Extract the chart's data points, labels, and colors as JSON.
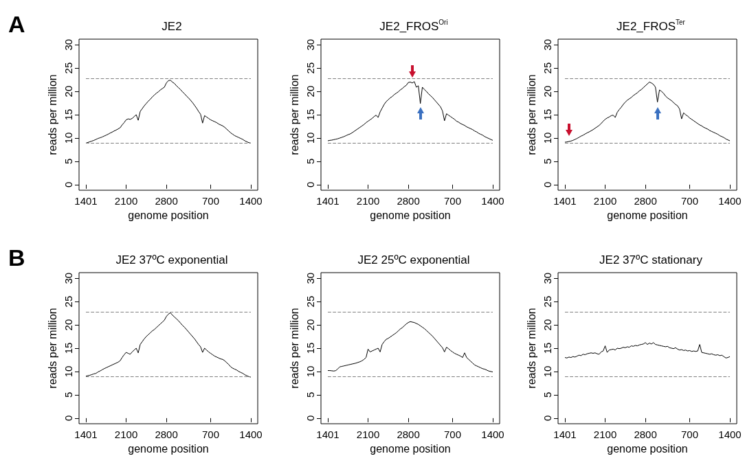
{
  "chart_data": [
    {
      "type": "line",
      "title": "JE2",
      "xlabel": "genome position",
      "ylabel": "reads per million",
      "annotations": [
        "A"
      ],
      "color": "#000000",
      "categories": [
        "1401",
        null,
        null,
        null,
        null,
        null,
        null,
        null,
        null,
        null,
        null,
        null,
        null,
        null,
        null,
        null,
        null,
        null,
        null,
        null,
        "2100",
        null,
        null,
        null,
        null,
        null,
        null,
        null,
        null,
        null,
        null,
        null,
        null,
        null,
        null,
        null,
        null,
        null,
        null,
        null,
        "2800",
        null,
        null,
        null,
        null,
        null,
        null,
        null,
        null,
        null,
        null,
        null,
        null,
        null,
        null,
        null,
        null,
        null,
        null,
        null,
        null,
        null,
        "700",
        null,
        null,
        null,
        null,
        null,
        null,
        null,
        null,
        null,
        null,
        null,
        null,
        null,
        null,
        null,
        null,
        null,
        null,
        null,
        "1400"
      ],
      "values": [
        8.9,
        9.05,
        9.2,
        9.35,
        9.5,
        9.7,
        9.9,
        10.05,
        10.2,
        10.4,
        10.6,
        10.8,
        11.05,
        11.25,
        11.5,
        11.7,
        11.95,
        12.2,
        12.8,
        13.3,
        13.9,
        14.1,
        14.0,
        14.2,
        14.6,
        15.0,
        13.8,
        15.7,
        16.3,
        16.9,
        17.4,
        17.9,
        18.3,
        18.8,
        19.2,
        19.6,
        19.9,
        20.3,
        20.6,
        20.9,
        21.8,
        22.3,
        22.4,
        22.0,
        21.7,
        21.2,
        20.8,
        20.4,
        19.9,
        19.5,
        19.0,
        18.6,
        18.1,
        17.6,
        17.0,
        16.4,
        15.7,
        15.1,
        13.2,
        14.8,
        14.5,
        14.2,
        13.9,
        13.7,
        13.5,
        13.3,
        13.0,
        12.8,
        12.6,
        12.3,
        11.9,
        11.5,
        11.1,
        10.8,
        10.5,
        10.3,
        10.1,
        9.9,
        9.7,
        9.4,
        9.2,
        9.0,
        8.9
      ],
      "ylim": [
        -1.2,
        31.2
      ],
      "yticks": [
        0,
        5,
        10,
        15,
        20,
        25,
        30
      ],
      "ref_lines": [
        {
          "axis": "y",
          "value": 22.7,
          "color": "#808080",
          "line_style": "dashed"
        },
        {
          "axis": "y",
          "value": 8.9,
          "color": "#808080",
          "line_style": "dashed"
        }
      ]
    },
    {
      "type": "line",
      "title": "JE2_FROS$^{Ori}$",
      "xlabel": "genome position",
      "ylabel": "reads per million",
      "color": "#000000",
      "categories": [
        "1401",
        null,
        null,
        null,
        null,
        null,
        null,
        null,
        null,
        null,
        null,
        null,
        null,
        null,
        null,
        null,
        null,
        null,
        null,
        null,
        "2100",
        null,
        null,
        null,
        null,
        null,
        null,
        null,
        null,
        null,
        null,
        null,
        null,
        null,
        null,
        null,
        null,
        null,
        null,
        null,
        "2800",
        null,
        null,
        null,
        null,
        null,
        null,
        null,
        null,
        null,
        null,
        null,
        null,
        null,
        null,
        null,
        null,
        null,
        null,
        null,
        null,
        null,
        "700",
        null,
        null,
        null,
        null,
        null,
        null,
        null,
        null,
        null,
        null,
        null,
        null,
        null,
        null,
        null,
        null,
        null,
        null,
        null,
        "1400"
      ],
      "values": [
        9.4,
        9.5,
        9.55,
        9.65,
        9.75,
        9.85,
        10.0,
        10.15,
        10.3,
        10.5,
        10.7,
        10.85,
        11.1,
        11.4,
        11.7,
        12.0,
        12.3,
        12.6,
        12.9,
        13.3,
        13.6,
        13.9,
        14.2,
        14.6,
        14.9,
        14.4,
        15.6,
        16.4,
        17.2,
        17.8,
        18.2,
        18.6,
        18.9,
        19.3,
        19.6,
        19.9,
        20.3,
        20.6,
        21.0,
        21.3,
        21.9,
        22.0,
        21.8,
        22.1,
        20.9,
        21.2,
        17.4,
        20.9,
        20.4,
        20.0,
        19.5,
        19.1,
        18.7,
        18.2,
        17.7,
        17.2,
        16.7,
        15.8,
        13.7,
        15.2,
        14.9,
        14.6,
        14.3,
        14.0,
        13.6,
        13.4,
        13.1,
        12.9,
        12.7,
        12.4,
        12.2,
        12.0,
        11.8,
        11.5,
        11.3,
        11.0,
        10.8,
        10.6,
        10.3,
        10.1,
        9.9,
        9.7,
        9.5
      ],
      "ylim": [
        -1.2,
        31.2
      ],
      "yticks": [
        0,
        5,
        10,
        15,
        20,
        25,
        30
      ],
      "ref_lines": [
        {
          "axis": "y",
          "value": 22.7,
          "color": "#808080",
          "line_style": "dashed"
        },
        {
          "axis": "y",
          "value": 8.9,
          "color": "#808080",
          "line_style": "dashed"
        }
      ]
    },
    {
      "type": "line",
      "title": "JE2_FROS$^{Ter}$",
      "xlabel": "genome position",
      "ylabel": "reads per million",
      "color": "#000000",
      "categories": [
        "1401",
        null,
        null,
        null,
        null,
        null,
        null,
        null,
        null,
        null,
        null,
        null,
        null,
        null,
        null,
        null,
        null,
        null,
        null,
        null,
        "2100",
        null,
        null,
        null,
        null,
        null,
        null,
        null,
        null,
        null,
        null,
        null,
        null,
        null,
        null,
        null,
        null,
        null,
        null,
        null,
        "2800",
        null,
        null,
        null,
        null,
        null,
        null,
        null,
        null,
        null,
        null,
        null,
        null,
        null,
        null,
        null,
        null,
        null,
        null,
        null,
        null,
        null,
        "700",
        null,
        null,
        null,
        null,
        null,
        null,
        null,
        null,
        null,
        null,
        null,
        null,
        null,
        null,
        null,
        null,
        null,
        null,
        null,
        "1400"
      ],
      "values": [
        9.1,
        9.15,
        9.25,
        9.35,
        9.5,
        9.7,
        9.9,
        10.15,
        10.4,
        10.6,
        10.85,
        11.1,
        11.3,
        11.55,
        11.8,
        12.1,
        12.4,
        12.7,
        13.1,
        13.6,
        14.0,
        14.3,
        14.5,
        14.8,
        14.9,
        14.4,
        15.5,
        16.1,
        16.6,
        17.2,
        17.7,
        18.1,
        18.4,
        18.7,
        19.1,
        19.4,
        19.7,
        20.1,
        20.4,
        20.8,
        21.2,
        21.6,
        22.0,
        21.8,
        21.5,
        20.9,
        17.7,
        20.3,
        20.0,
        19.6,
        19.0,
        18.6,
        18.3,
        18.0,
        17.6,
        17.2,
        16.9,
        16.2,
        14.1,
        15.4,
        15.0,
        14.7,
        14.3,
        14.0,
        13.7,
        13.4,
        13.1,
        12.8,
        12.6,
        12.3,
        12.1,
        11.9,
        11.6,
        11.4,
        11.2,
        11.0,
        10.8,
        10.5,
        10.3,
        10.1,
        9.8,
        9.6,
        9.4
      ],
      "ylim": [
        -1.2,
        31.2
      ],
      "yticks": [
        0,
        5,
        10,
        15,
        20,
        25,
        30
      ],
      "ref_lines": [
        {
          "axis": "y",
          "value": 22.7,
          "color": "#808080",
          "line_style": "dashed"
        },
        {
          "axis": "y",
          "value": 8.9,
          "color": "#808080",
          "line_style": "dashed"
        }
      ]
    },
    {
      "type": "line",
      "title": "JE2 37ºC exponential",
      "xlabel": "genome position",
      "ylabel": "reads per million",
      "annotations": [
        "B"
      ],
      "color": "#000000",
      "categories": [
        "1401",
        null,
        null,
        null,
        null,
        null,
        null,
        null,
        null,
        null,
        null,
        null,
        null,
        null,
        null,
        null,
        null,
        null,
        null,
        null,
        "2100",
        null,
        null,
        null,
        null,
        null,
        null,
        null,
        null,
        null,
        null,
        null,
        null,
        null,
        null,
        null,
        null,
        null,
        null,
        null,
        "2800",
        null,
        null,
        null,
        null,
        null,
        null,
        null,
        null,
        null,
        null,
        null,
        null,
        null,
        null,
        null,
        null,
        null,
        null,
        null,
        null,
        null,
        "700",
        null,
        null,
        null,
        null,
        null,
        null,
        null,
        null,
        null,
        null,
        null,
        null,
        null,
        null,
        null,
        null,
        null,
        null,
        null,
        "1400"
      ],
      "values": [
        9.0,
        9.1,
        9.2,
        9.35,
        9.5,
        9.6,
        9.9,
        10.1,
        10.35,
        10.6,
        10.8,
        11.0,
        11.2,
        11.4,
        11.6,
        11.8,
        12.0,
        12.3,
        13.0,
        13.6,
        14.1,
        13.9,
        13.7,
        14.2,
        14.6,
        15.0,
        14.0,
        15.8,
        16.4,
        17.0,
        17.5,
        17.9,
        18.3,
        18.7,
        19.0,
        19.4,
        19.8,
        20.2,
        20.6,
        21.0,
        21.8,
        22.3,
        22.6,
        22.1,
        21.7,
        21.3,
        20.9,
        20.4,
        19.9,
        19.5,
        19.0,
        18.5,
        18.0,
        17.5,
        17.0,
        16.4,
        15.8,
        15.3,
        14.1,
        15.0,
        14.6,
        14.2,
        13.9,
        13.6,
        13.3,
        13.1,
        12.9,
        12.7,
        12.6,
        12.3,
        11.9,
        11.5,
        11.0,
        10.7,
        10.5,
        10.3,
        10.0,
        9.8,
        9.6,
        9.3,
        9.1,
        8.9,
        8.8
      ],
      "ylim": [
        -1.2,
        31.2
      ],
      "yticks": [
        0,
        5,
        10,
        15,
        20,
        25,
        30
      ],
      "ref_lines": [
        {
          "axis": "y",
          "value": 22.7,
          "color": "#808080",
          "line_style": "dashed"
        },
        {
          "axis": "y",
          "value": 8.9,
          "color": "#808080",
          "line_style": "dashed"
        }
      ]
    },
    {
      "type": "line",
      "title": "JE2 25ºC exponential",
      "xlabel": "genome position",
      "ylabel": "reads per million",
      "color": "#000000",
      "categories": [
        "1401",
        null,
        null,
        null,
        null,
        null,
        null,
        null,
        null,
        null,
        null,
        null,
        null,
        null,
        null,
        null,
        null,
        null,
        null,
        null,
        "2100",
        null,
        null,
        null,
        null,
        null,
        null,
        null,
        null,
        null,
        null,
        null,
        null,
        null,
        null,
        null,
        null,
        null,
        null,
        null,
        "2800",
        null,
        null,
        null,
        null,
        null,
        null,
        null,
        null,
        null,
        null,
        null,
        null,
        null,
        null,
        null,
        null,
        null,
        null,
        null,
        null,
        null,
        "700",
        null,
        null,
        null,
        null,
        null,
        null,
        null,
        null,
        null,
        null,
        null,
        null,
        null,
        null,
        null,
        null,
        null,
        null,
        null,
        "1400"
      ],
      "values": [
        10.2,
        10.2,
        10.15,
        10.1,
        10.2,
        10.6,
        11.0,
        11.1,
        11.2,
        11.3,
        11.4,
        11.5,
        11.6,
        11.7,
        11.8,
        11.95,
        12.1,
        12.3,
        12.6,
        13.0,
        14.8,
        14.2,
        14.4,
        14.6,
        14.8,
        15.0,
        14.2,
        15.8,
        16.4,
        16.9,
        17.1,
        17.4,
        17.7,
        18.0,
        18.3,
        18.7,
        19.1,
        19.4,
        19.8,
        20.2,
        20.5,
        20.7,
        20.6,
        20.5,
        20.3,
        20.1,
        19.8,
        19.5,
        19.2,
        18.8,
        18.4,
        18.0,
        17.6,
        17.1,
        16.6,
        16.1,
        15.6,
        15.1,
        14.2,
        15.2,
        14.9,
        14.5,
        14.2,
        13.9,
        13.7,
        13.5,
        13.3,
        13.0,
        14.0,
        13.0,
        12.6,
        12.2,
        11.8,
        11.4,
        11.2,
        11.0,
        10.8,
        10.6,
        10.5,
        10.3,
        10.1,
        10.0,
        9.9
      ],
      "ylim": [
        -1.2,
        31.2
      ],
      "yticks": [
        0,
        5,
        10,
        15,
        20,
        25,
        30
      ],
      "ref_lines": [
        {
          "axis": "y",
          "value": 22.7,
          "color": "#808080",
          "line_style": "dashed"
        },
        {
          "axis": "y",
          "value": 8.9,
          "color": "#808080",
          "line_style": "dashed"
        }
      ]
    },
    {
      "type": "line",
      "title": "JE2 37ºC stationary",
      "xlabel": "genome position",
      "ylabel": "reads per million",
      "color": "#000000",
      "categories": [
        "1401",
        null,
        null,
        null,
        null,
        null,
        null,
        null,
        null,
        null,
        null,
        null,
        null,
        null,
        null,
        null,
        null,
        null,
        null,
        null,
        "2100",
        null,
        null,
        null,
        null,
        null,
        null,
        null,
        null,
        null,
        null,
        null,
        null,
        null,
        null,
        null,
        null,
        null,
        null,
        null,
        "2800",
        null,
        null,
        null,
        null,
        null,
        null,
        null,
        null,
        null,
        null,
        null,
        null,
        null,
        null,
        null,
        null,
        null,
        null,
        null,
        null,
        null,
        "700",
        null,
        null,
        null,
        null,
        null,
        null,
        null,
        null,
        null,
        null,
        null,
        null,
        null,
        null,
        null,
        null,
        null,
        null,
        null,
        "1400"
      ],
      "values": [
        13.0,
        12.9,
        13.1,
        13.0,
        13.2,
        13.1,
        13.3,
        13.5,
        13.4,
        13.7,
        13.6,
        13.8,
        13.9,
        14.0,
        13.9,
        14.0,
        13.8,
        13.7,
        14.2,
        14.4,
        15.5,
        14.1,
        14.6,
        14.7,
        14.8,
        14.6,
        15.0,
        14.9,
        15.0,
        15.2,
        15.1,
        15.3,
        15.2,
        15.5,
        15.4,
        15.6,
        15.5,
        15.7,
        15.8,
        15.9,
        16.2,
        15.8,
        16.1,
        15.9,
        16.2,
        15.8,
        15.7,
        15.6,
        15.5,
        15.4,
        15.3,
        15.4,
        15.1,
        15.0,
        14.9,
        15.1,
        14.8,
        14.6,
        14.7,
        14.5,
        14.6,
        14.4,
        14.5,
        14.3,
        14.4,
        14.3,
        14.4,
        15.8,
        14.1,
        14.0,
        13.9,
        13.8,
        13.7,
        13.8,
        13.6,
        13.5,
        13.6,
        13.4,
        13.5,
        13.2,
        12.9,
        13.0,
        13.2
      ],
      "ylim": [
        -1.2,
        31.2
      ],
      "yticks": [
        0,
        5,
        10,
        15,
        20,
        25,
        30
      ],
      "ref_lines": [
        {
          "axis": "y",
          "value": 22.7,
          "color": "#808080",
          "line_style": "dashed"
        },
        {
          "axis": "y",
          "value": 8.9,
          "color": "#808080",
          "line_style": "dashed"
        }
      ]
    }
  ]
}
